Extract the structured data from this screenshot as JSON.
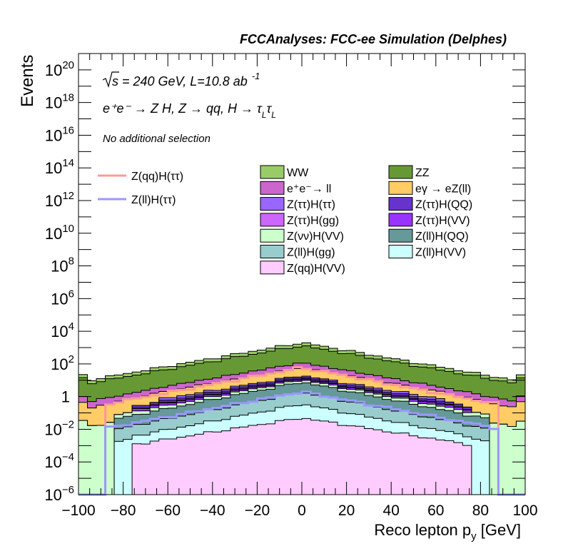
{
  "chart_data": {
    "type": "area",
    "title": "FCCAnalyses: FCC-ee Simulation (Delphes)",
    "xlabel_main": "Reco lepton p",
    "xlabel_sub": "y",
    "xlabel_unit": " [GeV]",
    "ylabel": "Events",
    "xlim": [
      -100,
      100
    ],
    "ylim": [
      1e-06,
      1e+21
    ],
    "yscale": "log",
    "x_ticks": [
      -100,
      -80,
      -60,
      -40,
      -20,
      0,
      20,
      40,
      60,
      80,
      100
    ],
    "x_tick_labels": [
      "−100",
      "−80",
      "−60",
      "−40",
      "−20",
      "0",
      "20",
      "40",
      "60",
      "80",
      "100"
    ],
    "y_tick_labels": [
      {
        "base": "10",
        "exp": "−6",
        "value": 1e-06
      },
      {
        "base": "10",
        "exp": "−4",
        "value": 0.0001
      },
      {
        "base": "10",
        "exp": "−2",
        "value": 0.01
      },
      {
        "base": "1",
        "exp": "",
        "value": 1
      },
      {
        "base": "10",
        "exp": "2",
        "value": 100.0
      },
      {
        "base": "10",
        "exp": "4",
        "value": 10000.0
      },
      {
        "base": "10",
        "exp": "6",
        "value": 1000000.0
      },
      {
        "base": "10",
        "exp": "8",
        "value": 100000000.0
      },
      {
        "base": "10",
        "exp": "10",
        "value": 10000000000.0
      },
      {
        "base": "10",
        "exp": "12",
        "value": 1000000000000.0
      },
      {
        "base": "10",
        "exp": "14",
        "value": 100000000000000.0
      },
      {
        "base": "10",
        "exp": "16",
        "value": 1e+16
      },
      {
        "base": "10",
        "exp": "18",
        "value": 1e+18
      },
      {
        "base": "10",
        "exp": "20",
        "value": 1e+20
      }
    ],
    "annotations": {
      "energy": "s = 240 GeV, L=10.8 ab",
      "energy_exp": "-1",
      "process": "e⁺e⁻ → Z H, Z → qq, H → τ",
      "process_sub1": "L",
      "process_mid": "τ",
      "process_sub2": "L",
      "selection": "No additional selection"
    },
    "bins": {
      "start": -100,
      "width": 4
    },
    "stack_order_bottom_to_top": [
      "Z(qq)H(VV)",
      "Z(ll)H(VV)",
      "Z(ll)H(gg)",
      "Z(ll)H(QQ)",
      "Z(νν)H(VV)",
      "Z(ττ)H(VV)",
      "Z(ττ)H(gg)",
      "Z(ττ)H(QQ)",
      "Z(ττ)H(ττ)",
      "eγ → eZ(ll)",
      "e⁺e⁻→ ll",
      "ZZ",
      "WW"
    ],
    "series": [
      {
        "name": "Z(qq)H(VV)",
        "color": "#ffccff",
        "shape": "narrow",
        "peak": 0.05
      },
      {
        "name": "Z(ll)H(VV)",
        "color": "#ccffff",
        "shape": "medium",
        "peak": 0.3
      },
      {
        "name": "Z(ll)H(gg)",
        "color": "#99cccc",
        "shape": "medium",
        "peak": 1.5
      },
      {
        "name": "Z(ll)H(QQ)",
        "color": "#669999",
        "shape": "medium",
        "peak": 6
      },
      {
        "name": "Z(νν)H(VV)",
        "color": "#ccffcc",
        "shape": "wide",
        "peak": 3
      },
      {
        "name": "Z(ττ)H(VV)",
        "color": "#9933ff",
        "shape": "narrow",
        "peak": 2
      },
      {
        "name": "Z(ττ)H(gg)",
        "color": "#cc66ff",
        "shape": "narrow",
        "peak": 1
      },
      {
        "name": "Z(ττ)H(QQ)",
        "color": "#6633cc",
        "shape": "narrow",
        "peak": 3
      },
      {
        "name": "Z(ττ)H(ττ)",
        "color": "#9966ff",
        "shape": "main",
        "peak": 3
      },
      {
        "name": "eγ → eZ(ll)",
        "color": "#ffcc66",
        "shape": "wide",
        "peak": 40
      },
      {
        "name": "e⁺e⁻→ ll",
        "color": "#cc66cc",
        "shape": "wide",
        "peak": 60
      },
      {
        "name": "ZZ",
        "color": "#669933",
        "shape": "wide",
        "peak": 1200
      },
      {
        "name": "WW",
        "color": "#99cc66",
        "shape": "wide",
        "peak": 700
      }
    ],
    "overlay_lines": [
      {
        "name": "Z(qq)H(ττ)",
        "color": "#ff9999",
        "peak": 60
      },
      {
        "name": "Z(ll)H(ττ)",
        "color": "#9999ff",
        "peak": 2
      }
    ],
    "legend": {
      "lines": [
        "Z(qq)H(ττ)",
        "Z(ll)H(ττ)"
      ],
      "col1": [
        "WW",
        "e⁺e⁻→ ll",
        "Z(ττ)H(ττ)",
        "Z(ττ)H(gg)",
        "Z(νν)H(VV)",
        "Z(ll)H(gg)",
        "Z(qq)H(VV)"
      ],
      "col2": [
        "ZZ",
        "eγ → eZ(ll)",
        "Z(ττ)H(QQ)",
        "Z(ττ)H(VV)",
        "Z(ll)H(QQ)",
        "Z(ll)H(VV)"
      ],
      "placement": "upper-right"
    },
    "grid": false
  }
}
